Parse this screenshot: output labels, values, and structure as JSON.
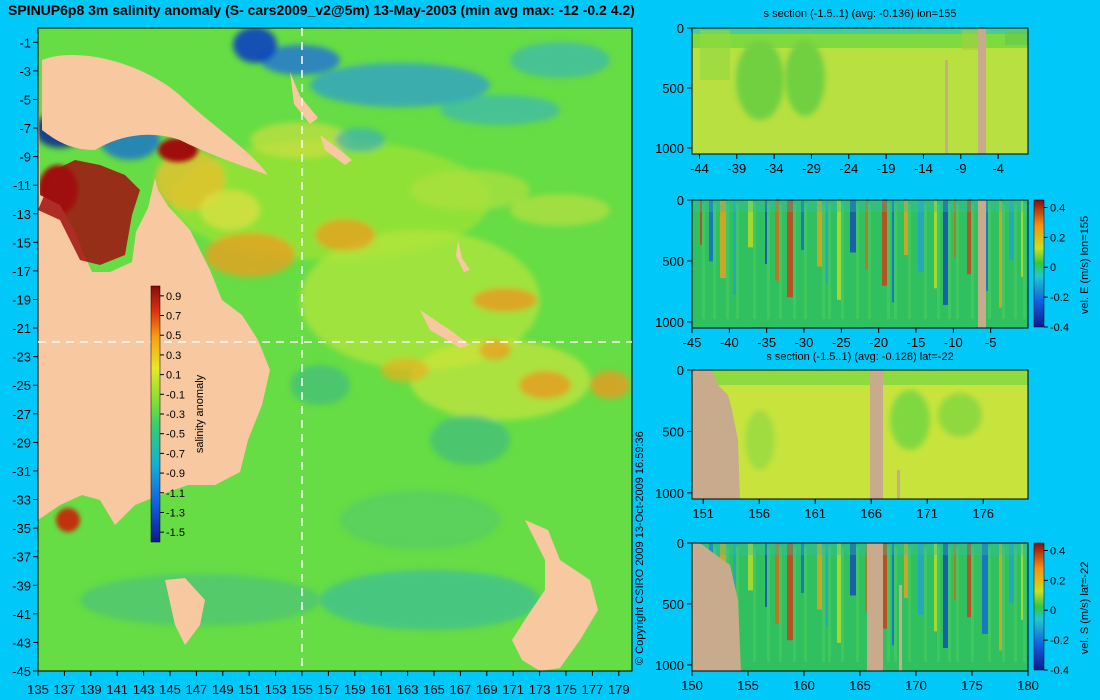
{
  "title": "SPINUP6p8 3m salinity anomaly (S- cars2009_v2@5m) 13-May-2003 (min avg max: -12 -0.2 4.2)",
  "copyright": "© Copyright CSIRO 2009  13-Oct-2009 16:59:36",
  "colors": {
    "background": "#00c8f8",
    "land_map": "#f8c8a0",
    "land_section": "#c8aa8c",
    "base_field": "#66dd44",
    "positive_anomaly": "#e08a10",
    "negative_anomaly": "#1e8cd8",
    "extreme_positive": "#9a1010",
    "extreme_negative": "#101890"
  },
  "chart_data": [
    {
      "id": "map",
      "type": "heatmap",
      "title": "SPINUP6p8 3m salinity anomaly (S- cars2009_v2@5m) 13-May-2003 (min avg max: -12 -0.2 4.2)",
      "x_ticks": [
        135,
        137,
        139,
        141,
        143,
        145,
        147,
        149,
        151,
        153,
        155,
        157,
        159,
        161,
        163,
        165,
        167,
        169,
        171,
        173,
        175,
        177,
        179
      ],
      "y_ticks": [
        -1,
        -3,
        -5,
        -7,
        -9,
        -11,
        -13,
        -15,
        -17,
        -19,
        -21,
        -23,
        -25,
        -27,
        -29,
        -31,
        -33,
        -35,
        -37,
        -39,
        -41,
        -43,
        -45
      ],
      "xlim": [
        135,
        180
      ],
      "ylim": [
        -45,
        0
      ],
      "section_lon": 155,
      "section_lat": -22,
      "colorbar": {
        "label": "salinity anomaly",
        "ticks": [
          "0.9",
          "0.7",
          "0.5",
          "0.3",
          "0.1",
          "-0.1",
          "-0.3",
          "-0.5",
          "-0.7",
          "-0.9",
          "-1.1",
          "-1.3",
          "-1.5"
        ],
        "range": [
          -1.6,
          1.0
        ]
      }
    },
    {
      "id": "section-s-lon155",
      "type": "heatmap",
      "title": "s section (-1.5..1) (avg: -0.136) lon=155",
      "x_ticks": [
        "-44",
        "-39",
        "-34",
        "-29",
        "-24",
        "-19",
        "-14",
        "-9",
        "-4"
      ],
      "x_values": [
        -44,
        -39,
        -34,
        -29,
        -24,
        -19,
        -14,
        -9,
        -4
      ],
      "xlim": [
        -45,
        0
      ],
      "y_ticks": [
        "0",
        "500",
        "1000"
      ],
      "y_values": [
        0,
        500,
        1000
      ],
      "ylim": [
        0,
        1050
      ]
    },
    {
      "id": "section-u-lon155",
      "type": "heatmap",
      "x_ticks": [
        "-45",
        "-40",
        "-35",
        "-30",
        "-25",
        "-20",
        "-15",
        "-10",
        "-5"
      ],
      "x_values": [
        -45,
        -40,
        -35,
        -30,
        -25,
        -20,
        -15,
        -10,
        -5
      ],
      "xlim": [
        -45,
        0
      ],
      "y_ticks": [
        "0",
        "500",
        "1000"
      ],
      "y_values": [
        0,
        500,
        1000
      ],
      "ylim": [
        0,
        1050
      ],
      "colorbar": {
        "label": "vel. E (m/s) lon=155",
        "ticks": [
          "0.4",
          "0.2",
          "0",
          "-0.2",
          "-0.4"
        ],
        "range": [
          -0.4,
          0.45
        ]
      }
    },
    {
      "id": "section-s-lat22",
      "type": "heatmap",
      "title": "s section (-1.5..1) (avg: -0.128) lat=-22",
      "x_ticks": [
        "151",
        "156",
        "161",
        "166",
        "171",
        "176"
      ],
      "x_values": [
        151,
        156,
        161,
        166,
        171,
        176
      ],
      "xlim": [
        150,
        180
      ],
      "y_ticks": [
        "0",
        "500",
        "1000"
      ],
      "y_values": [
        0,
        500,
        1000
      ],
      "ylim": [
        0,
        1050
      ]
    },
    {
      "id": "section-v-lat22",
      "type": "heatmap",
      "x_ticks": [
        "150",
        "155",
        "160",
        "165",
        "170",
        "175",
        "180"
      ],
      "x_values": [
        150,
        155,
        160,
        165,
        170,
        175,
        180
      ],
      "xlim": [
        150,
        180
      ],
      "y_ticks": [
        "0",
        "500",
        "1000"
      ],
      "y_values": [
        0,
        500,
        1000
      ],
      "ylim": [
        0,
        1050
      ],
      "colorbar": {
        "label": "vel. S (m/s) lat=-22",
        "ticks": [
          "0.4",
          "0.2",
          "0",
          "-0.2",
          "-0.4"
        ],
        "range": [
          -0.4,
          0.45
        ]
      }
    }
  ]
}
